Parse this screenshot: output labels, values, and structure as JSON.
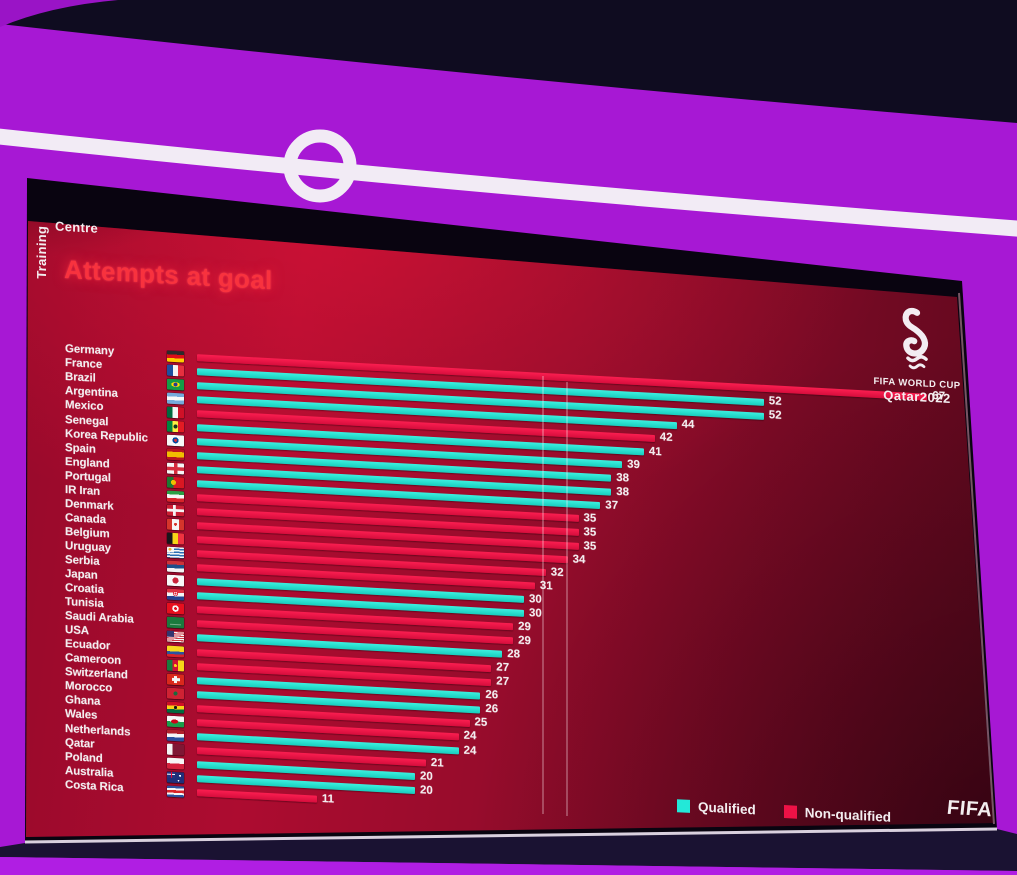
{
  "screen": {
    "brand": {
      "vertical": "Training",
      "horizontal": "Centre"
    },
    "title": "Attempts at goal",
    "wc_logo": {
      "line1": "FIFA WORLD CUP",
      "line2": "Qatar2022"
    },
    "legend": {
      "qualified_label": "Qualified",
      "non_qualified_label": "Non-qualified"
    },
    "fifa_wordmark": "FIFA",
    "colors": {
      "qualified": "#23e8d8",
      "non_qualified": "#ee1246",
      "title_red": "#f8323e",
      "backdrop_purple": "#a718d4"
    }
  },
  "chart_data": {
    "type": "bar",
    "orientation": "horizontal",
    "title": "Attempts at goal",
    "value_label": "attempts at goal",
    "xlim": [
      0,
      70
    ],
    "grid": false,
    "legend_position": "bottom-right",
    "legend": [
      {
        "label": "Qualified",
        "color": "#23e8d8"
      },
      {
        "label": "Non-qualified",
        "color": "#ee1246"
      }
    ],
    "rows": [
      {
        "country": "Germany",
        "value": 67,
        "qualified": false,
        "flag": "germany"
      },
      {
        "country": "France",
        "value": 52,
        "qualified": true,
        "flag": "france"
      },
      {
        "country": "Brazil",
        "value": 52,
        "qualified": true,
        "flag": "brazil"
      },
      {
        "country": "Argentina",
        "value": 44,
        "qualified": true,
        "flag": "argentina"
      },
      {
        "country": "Mexico",
        "value": 42,
        "qualified": false,
        "flag": "mexico"
      },
      {
        "country": "Senegal",
        "value": 41,
        "qualified": true,
        "flag": "senegal"
      },
      {
        "country": "Korea Republic",
        "value": 39,
        "qualified": true,
        "flag": "korea"
      },
      {
        "country": "Spain",
        "value": 38,
        "qualified": true,
        "flag": "spain"
      },
      {
        "country": "England",
        "value": 38,
        "qualified": true,
        "flag": "england"
      },
      {
        "country": "Portugal",
        "value": 37,
        "qualified": true,
        "flag": "portugal"
      },
      {
        "country": "IR Iran",
        "value": 35,
        "qualified": false,
        "flag": "iran"
      },
      {
        "country": "Denmark",
        "value": 35,
        "qualified": false,
        "flag": "denmark"
      },
      {
        "country": "Canada",
        "value": 35,
        "qualified": false,
        "flag": "canada"
      },
      {
        "country": "Belgium",
        "value": 34,
        "qualified": false,
        "flag": "belgium"
      },
      {
        "country": "Uruguay",
        "value": 32,
        "qualified": false,
        "flag": "uruguay"
      },
      {
        "country": "Serbia",
        "value": 31,
        "qualified": false,
        "flag": "serbia"
      },
      {
        "country": "Japan",
        "value": 30,
        "qualified": true,
        "flag": "japan"
      },
      {
        "country": "Croatia",
        "value": 30,
        "qualified": true,
        "flag": "croatia"
      },
      {
        "country": "Tunisia",
        "value": 29,
        "qualified": false,
        "flag": "tunisia"
      },
      {
        "country": "Saudi Arabia",
        "value": 29,
        "qualified": false,
        "flag": "saudi-arabia"
      },
      {
        "country": "USA",
        "value": 28,
        "qualified": true,
        "flag": "usa"
      },
      {
        "country": "Ecuador",
        "value": 27,
        "qualified": false,
        "flag": "ecuador"
      },
      {
        "country": "Cameroon",
        "value": 27,
        "qualified": false,
        "flag": "cameroon"
      },
      {
        "country": "Switzerland",
        "value": 26,
        "qualified": true,
        "flag": "switzerland"
      },
      {
        "country": "Morocco",
        "value": 26,
        "qualified": true,
        "flag": "morocco"
      },
      {
        "country": "Ghana",
        "value": 25,
        "qualified": false,
        "flag": "ghana"
      },
      {
        "country": "Wales",
        "value": 24,
        "qualified": false,
        "flag": "wales"
      },
      {
        "country": "Netherlands",
        "value": 24,
        "qualified": true,
        "flag": "netherlands"
      },
      {
        "country": "Qatar",
        "value": 21,
        "qualified": false,
        "flag": "qatar"
      },
      {
        "country": "Poland",
        "value": 20,
        "qualified": true,
        "flag": "poland"
      },
      {
        "country": "Australia",
        "value": 20,
        "qualified": true,
        "flag": "australia"
      },
      {
        "country": "Costa Rica",
        "value": 11,
        "qualified": false,
        "flag": "costa-rica"
      }
    ]
  }
}
